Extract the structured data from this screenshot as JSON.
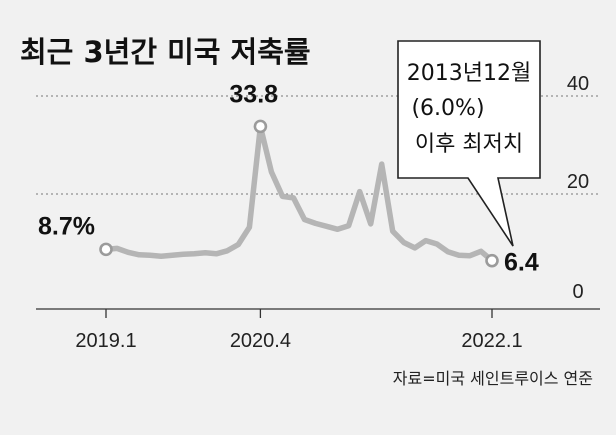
{
  "chart_data": {
    "type": "line",
    "title": "최근 3년간 미국 저축률",
    "source": "자료=미국 세인트루이스 연준",
    "ylim": [
      0,
      40
    ],
    "yticks": [
      "0",
      "20",
      "40"
    ],
    "xtick_labels": [
      "2019.1",
      "2020.4",
      "2022.1"
    ],
    "grid": true,
    "series": [
      {
        "values": [
          8.7,
          8.9,
          8.1,
          7.6,
          7.5,
          7.3,
          7.5,
          7.7,
          7.8,
          8.0,
          7.8,
          8.4,
          9.7,
          13.2,
          33.8,
          24.5,
          19.5,
          19.2,
          14.8,
          14.0,
          13.4,
          12.8,
          13.5,
          20.5,
          13.9,
          26.1,
          12.4,
          10.1,
          9.0,
          10.5,
          9.8,
          8.2,
          7.5,
          7.4,
          8.3,
          6.4
        ],
        "color": "#b5b5b5"
      }
    ],
    "annotations": [
      {
        "point": 0,
        "label": "8.7%"
      },
      {
        "point": 14,
        "label": "33.8"
      },
      {
        "point": 35,
        "label": "6.4"
      }
    ],
    "callout": [
      "2013년12월",
      "(6.0%)",
      "이후 최저치"
    ]
  }
}
